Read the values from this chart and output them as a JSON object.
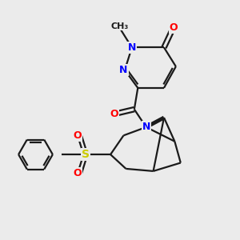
{
  "bg_color": "#ebebeb",
  "bond_color": "#1a1a1a",
  "bond_width": 1.6,
  "atom_colors": {
    "O": "#ff0000",
    "N": "#0000ff",
    "S": "#cccc00",
    "C": "#1a1a1a"
  },
  "font_size_atom": 9
}
